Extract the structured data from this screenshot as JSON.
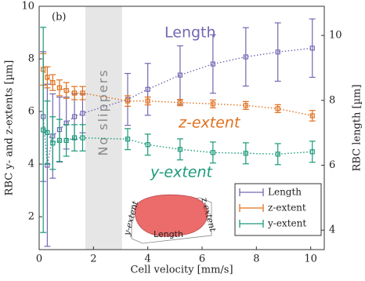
{
  "chart_data": {
    "type": "errorbar_line",
    "panel_label": "(b)",
    "x_label": "Cell velocity [mm/s]",
    "y_label": "RBC y- and z-extents [µm]",
    "y2_label": "RBC length [µm]",
    "xlim": [
      0,
      10.5
    ],
    "xticks": [
      0,
      2,
      4,
      6,
      8,
      10
    ],
    "ylim": [
      0.75,
      10
    ],
    "yticks": [
      2,
      4,
      6,
      8,
      10
    ],
    "y2lim": [
      3.4,
      10.9
    ],
    "y2ticks": [
      4,
      6,
      8,
      10
    ],
    "shaded_region": {
      "xlim": [
        1.7,
        3.05
      ],
      "label": "No slippers"
    },
    "annotations": [
      "Length",
      "z-extent",
      "y-extent"
    ],
    "legend": "bottom right",
    "inset": {
      "labels": [
        "y-extent",
        "z-extent",
        "Length"
      ]
    },
    "x": [
      0.15,
      0.3,
      0.5,
      0.75,
      1.0,
      1.3,
      1.6,
      3.26,
      4.0,
      5.19,
      6.4,
      7.61,
      8.79,
      10.06
    ],
    "series": [
      {
        "name": "Length",
        "color": "#7467b3",
        "axis": "y2",
        "values": [
          7.5,
          6.0,
          6.9,
          7.1,
          7.3,
          7.5,
          7.6,
          8.03,
          8.34,
          8.78,
          9.12,
          9.34,
          9.49,
          9.61
        ],
        "errors": [
          2.0,
          2.5,
          1.3,
          1.0,
          0.8,
          0.7,
          0.6,
          0.8,
          0.8,
          0.9,
          0.9,
          0.9,
          0.9,
          0.9
        ]
      },
      {
        "name": "z-extent",
        "color": "#e0701e",
        "values": [
          7.6,
          7.3,
          7.1,
          6.9,
          6.8,
          6.7,
          6.7,
          6.4,
          6.4,
          6.34,
          6.29,
          6.23,
          6.11,
          5.84
        ],
        "errors": [
          0.6,
          0.4,
          0.3,
          0.3,
          0.3,
          0.25,
          0.25,
          0.2,
          0.15,
          0.12,
          0.15,
          0.15,
          0.15,
          0.2
        ]
      },
      {
        "name": "y-extent",
        "color": "#1a9a7a",
        "values": [
          5.3,
          5.2,
          4.8,
          4.9,
          4.9,
          5.0,
          5.0,
          4.95,
          4.74,
          4.56,
          4.44,
          4.41,
          4.38,
          4.47
        ],
        "errors": [
          3.9,
          1.2,
          1.0,
          0.8,
          0.6,
          0.5,
          0.5,
          0.4,
          0.4,
          0.4,
          0.4,
          0.4,
          0.4,
          0.4
        ]
      }
    ]
  }
}
